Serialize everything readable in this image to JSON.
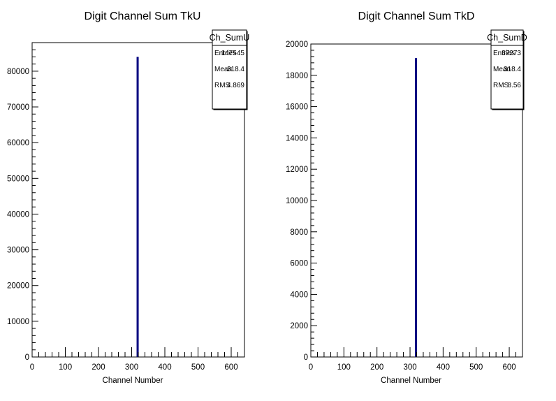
{
  "chart_data": [
    {
      "type": "bar",
      "title": "Digit Channel Sum TkU",
      "xlabel": "Channel Number",
      "ylabel": "",
      "xlim": [
        0,
        640
      ],
      "ylim": [
        0,
        88000
      ],
      "x_ticks": [
        0,
        100,
        200,
        300,
        400,
        500,
        600
      ],
      "x_tick_labels": [
        "0",
        "100",
        "200",
        "300",
        "400",
        "500",
        "600"
      ],
      "y_ticks": [
        0,
        10000,
        20000,
        30000,
        40000,
        50000,
        60000,
        70000,
        80000
      ],
      "y_tick_labels": [
        "0",
        "10000",
        "20000",
        "30000",
        "40000",
        "50000",
        "60000",
        "70000",
        "80000"
      ],
      "grid": false,
      "bar_color": "#000080",
      "bins": [
        {
          "x": 318,
          "value": 84000
        }
      ],
      "stats": {
        "name": "Ch_SumU",
        "rows": [
          {
            "label": "Entries",
            "value": "147545"
          },
          {
            "label": "Mean",
            "value": "318.4"
          },
          {
            "label": "RMS",
            "value": "4.869"
          }
        ]
      }
    },
    {
      "type": "bar",
      "title": "Digit Channel Sum TkD",
      "xlabel": "Channel Number",
      "ylabel": "",
      "xlim": [
        0,
        640
      ],
      "ylim": [
        0,
        20000
      ],
      "x_ticks": [
        0,
        100,
        200,
        300,
        400,
        500,
        600
      ],
      "x_tick_labels": [
        "0",
        "100",
        "200",
        "300",
        "400",
        "500",
        "600"
      ],
      "y_ticks": [
        0,
        2000,
        4000,
        6000,
        8000,
        10000,
        12000,
        14000,
        16000,
        18000,
        20000
      ],
      "y_tick_labels": [
        "0",
        "2000",
        "4000",
        "6000",
        "8000",
        "10000",
        "12000",
        "14000",
        "16000",
        "18000",
        "20000"
      ],
      "grid": false,
      "bar_color": "#000080",
      "bins": [
        {
          "x": 318,
          "value": 19100
        }
      ],
      "stats": {
        "name": "Ch_SumD",
        "rows": [
          {
            "label": "Entries",
            "value": "37273"
          },
          {
            "label": "Mean",
            "value": "318.4"
          },
          {
            "label": "RMS",
            "value": "8.56"
          }
        ]
      }
    }
  ]
}
